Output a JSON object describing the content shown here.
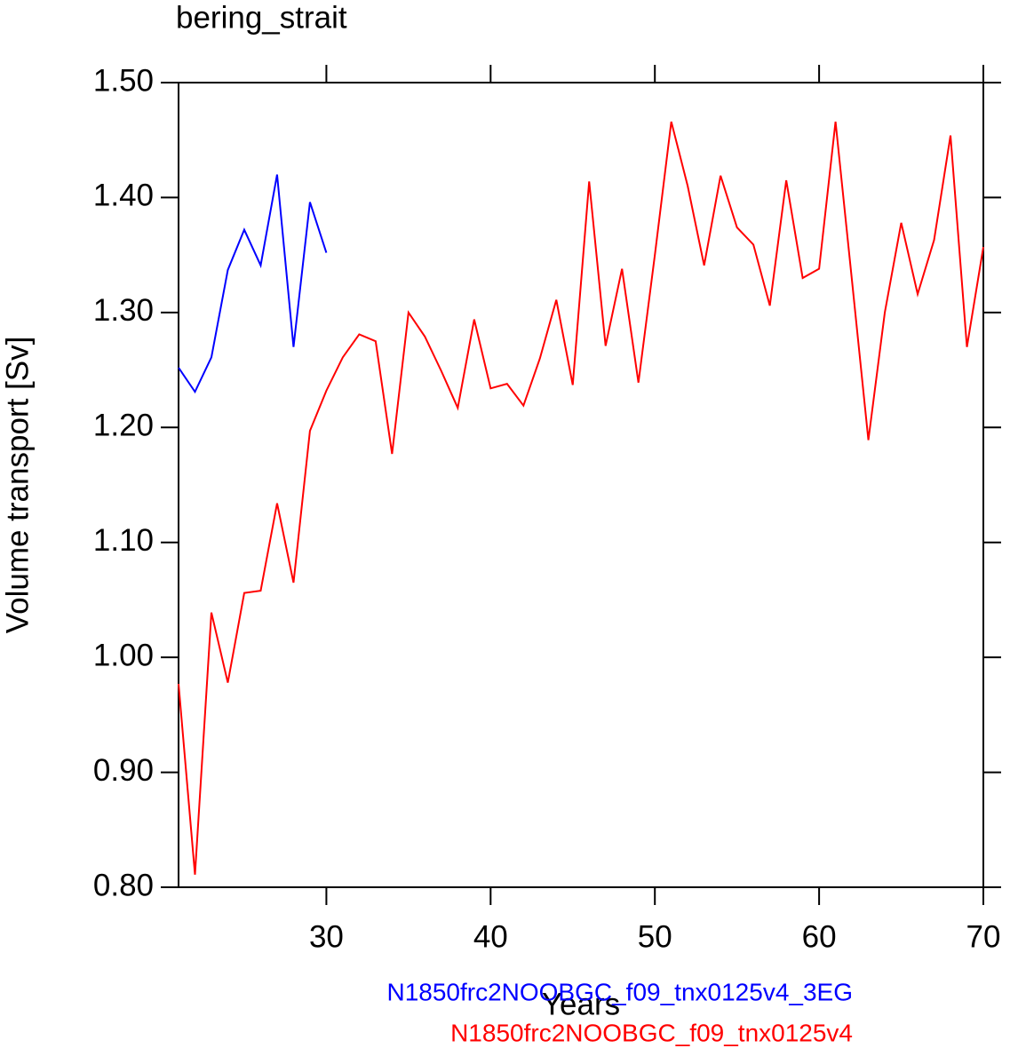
{
  "chart_data": {
    "type": "line",
    "title": "bering_strait",
    "x_label": "Years",
    "y_label": "Volume transport [Sv]",
    "xlim": [
      21,
      70
    ],
    "xticks": [
      30,
      40,
      50,
      60,
      70
    ],
    "ylim": [
      0.8,
      1.5
    ],
    "yticks": [
      {
        "value": 0.8,
        "label": "0.80"
      },
      {
        "value": 0.9,
        "label": "0.90"
      },
      {
        "value": 1.0,
        "label": "1.00"
      },
      {
        "value": 1.1,
        "label": "1.10"
      },
      {
        "value": 1.2,
        "label": "1.20"
      },
      {
        "value": 1.3,
        "label": "1.30"
      },
      {
        "value": 1.4,
        "label": "1.40"
      },
      {
        "value": 1.5,
        "label": "1.50"
      }
    ],
    "series": [
      {
        "name": "N1850frc2NOOBGC_f09_tnx0125v4_3EG",
        "color": "#0000ff",
        "x": [
          21,
          22,
          23,
          24,
          25,
          26,
          27,
          28,
          29,
          30
        ],
        "values": [
          1.252,
          1.231,
          1.261,
          1.337,
          1.372,
          1.341,
          1.42,
          1.27,
          1.396,
          1.352
        ]
      },
      {
        "name": "N1850frc2NOOBGC_f09_tnx0125v4",
        "color": "#ff0000",
        "x": [
          21,
          22,
          23,
          24,
          25,
          26,
          27,
          28,
          29,
          30,
          31,
          32,
          33,
          34,
          35,
          36,
          37,
          38,
          39,
          40,
          41,
          42,
          43,
          44,
          45,
          46,
          47,
          48,
          49,
          50,
          51,
          52,
          53,
          54,
          55,
          56,
          57,
          58,
          59,
          60,
          61,
          62,
          63,
          64,
          65,
          66,
          67,
          68,
          69,
          70
        ],
        "values": [
          0.977,
          0.811,
          1.039,
          0.978,
          1.056,
          1.058,
          1.134,
          1.065,
          1.197,
          1.232,
          1.261,
          1.281,
          1.275,
          1.177,
          1.3,
          1.279,
          1.249,
          1.217,
          1.294,
          1.234,
          1.238,
          1.219,
          1.26,
          1.311,
          1.237,
          1.414,
          1.271,
          1.338,
          1.239,
          1.35,
          1.466,
          1.41,
          1.341,
          1.419,
          1.374,
          1.359,
          1.306,
          1.415,
          1.33,
          1.338,
          1.466,
          1.328,
          1.189,
          1.3,
          1.378,
          1.316,
          1.363,
          1.454,
          1.27,
          1.357
        ]
      }
    ]
  }
}
